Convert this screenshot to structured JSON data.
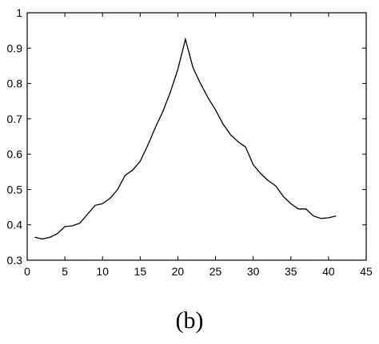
{
  "caption": "(b)",
  "chart_data": {
    "type": "line",
    "title": "",
    "xlabel": "",
    "ylabel": "",
    "xlim": [
      0,
      45
    ],
    "ylim": [
      0.3,
      1.0
    ],
    "x_ticks": [
      "0",
      "5",
      "10",
      "15",
      "20",
      "25",
      "30",
      "35",
      "40",
      "45"
    ],
    "y_ticks": [
      "0.3",
      "0.4",
      "0.5",
      "0.6",
      "0.7",
      "0.8",
      "0.9",
      "1"
    ],
    "grid": false,
    "legend": "none",
    "line_color": "#000000",
    "series": [
      {
        "x": [
          1,
          2,
          3,
          4,
          5,
          6,
          7,
          8,
          9,
          10,
          11,
          12,
          13,
          14,
          15,
          16,
          17,
          18,
          19,
          20,
          21,
          22,
          23,
          24,
          25,
          26,
          27,
          28,
          29,
          30,
          31,
          32,
          33,
          34,
          35,
          36,
          37,
          38,
          39,
          40,
          41
        ],
        "y": [
          0.365,
          0.36,
          0.365,
          0.375,
          0.395,
          0.397,
          0.405,
          0.43,
          0.455,
          0.46,
          0.475,
          0.5,
          0.54,
          0.555,
          0.58,
          0.625,
          0.675,
          0.72,
          0.775,
          0.84,
          0.925,
          0.845,
          0.8,
          0.76,
          0.725,
          0.685,
          0.655,
          0.635,
          0.62,
          0.57,
          0.545,
          0.525,
          0.51,
          0.48,
          0.46,
          0.445,
          0.445,
          0.425,
          0.418,
          0.42,
          0.425
        ]
      }
    ]
  }
}
